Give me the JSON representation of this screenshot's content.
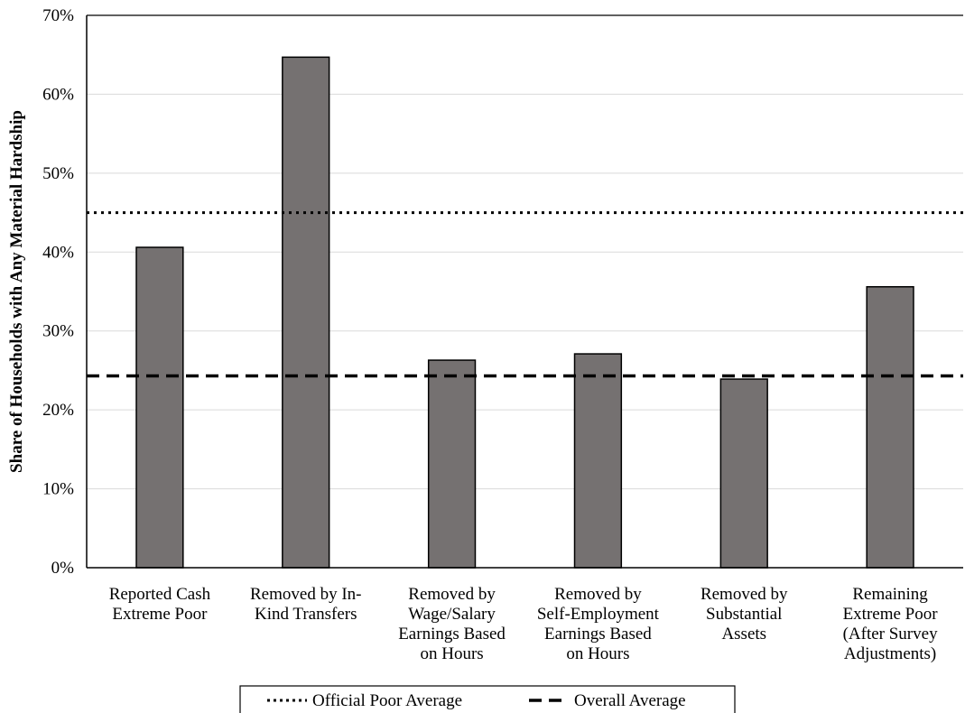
{
  "chart_data": {
    "type": "bar",
    "title": "",
    "xlabel": "",
    "ylabel": "Share of Households with Any Material Hardship",
    "ylim": [
      0,
      70
    ],
    "yticks": [
      "0%",
      "10%",
      "20%",
      "30%",
      "40%",
      "50%",
      "60%",
      "70%"
    ],
    "grid": "horizontal",
    "categories": [
      [
        "Reported Cash",
        "Extreme Poor"
      ],
      [
        "Removed by In-",
        "Kind Transfers"
      ],
      [
        "Removed by",
        "Wage/Salary",
        "Earnings Based",
        "on Hours"
      ],
      [
        "Removed by",
        "Self-Employment",
        "Earnings Based",
        "on Hours"
      ],
      [
        "Removed by",
        "Substantial",
        "Assets"
      ],
      [
        "Remaining",
        "Extreme Poor",
        "(After Survey",
        "Adjustments)"
      ]
    ],
    "values": [
      40.6,
      64.7,
      26.3,
      27.1,
      23.9,
      35.6
    ],
    "bar_color": "#757171",
    "reference_lines": [
      {
        "name": "Official Poor Average",
        "value": 45.0,
        "style": "dotted"
      },
      {
        "name": "Overall Average",
        "value": 24.3,
        "style": "dashed"
      }
    ],
    "legend_position": "bottom"
  }
}
